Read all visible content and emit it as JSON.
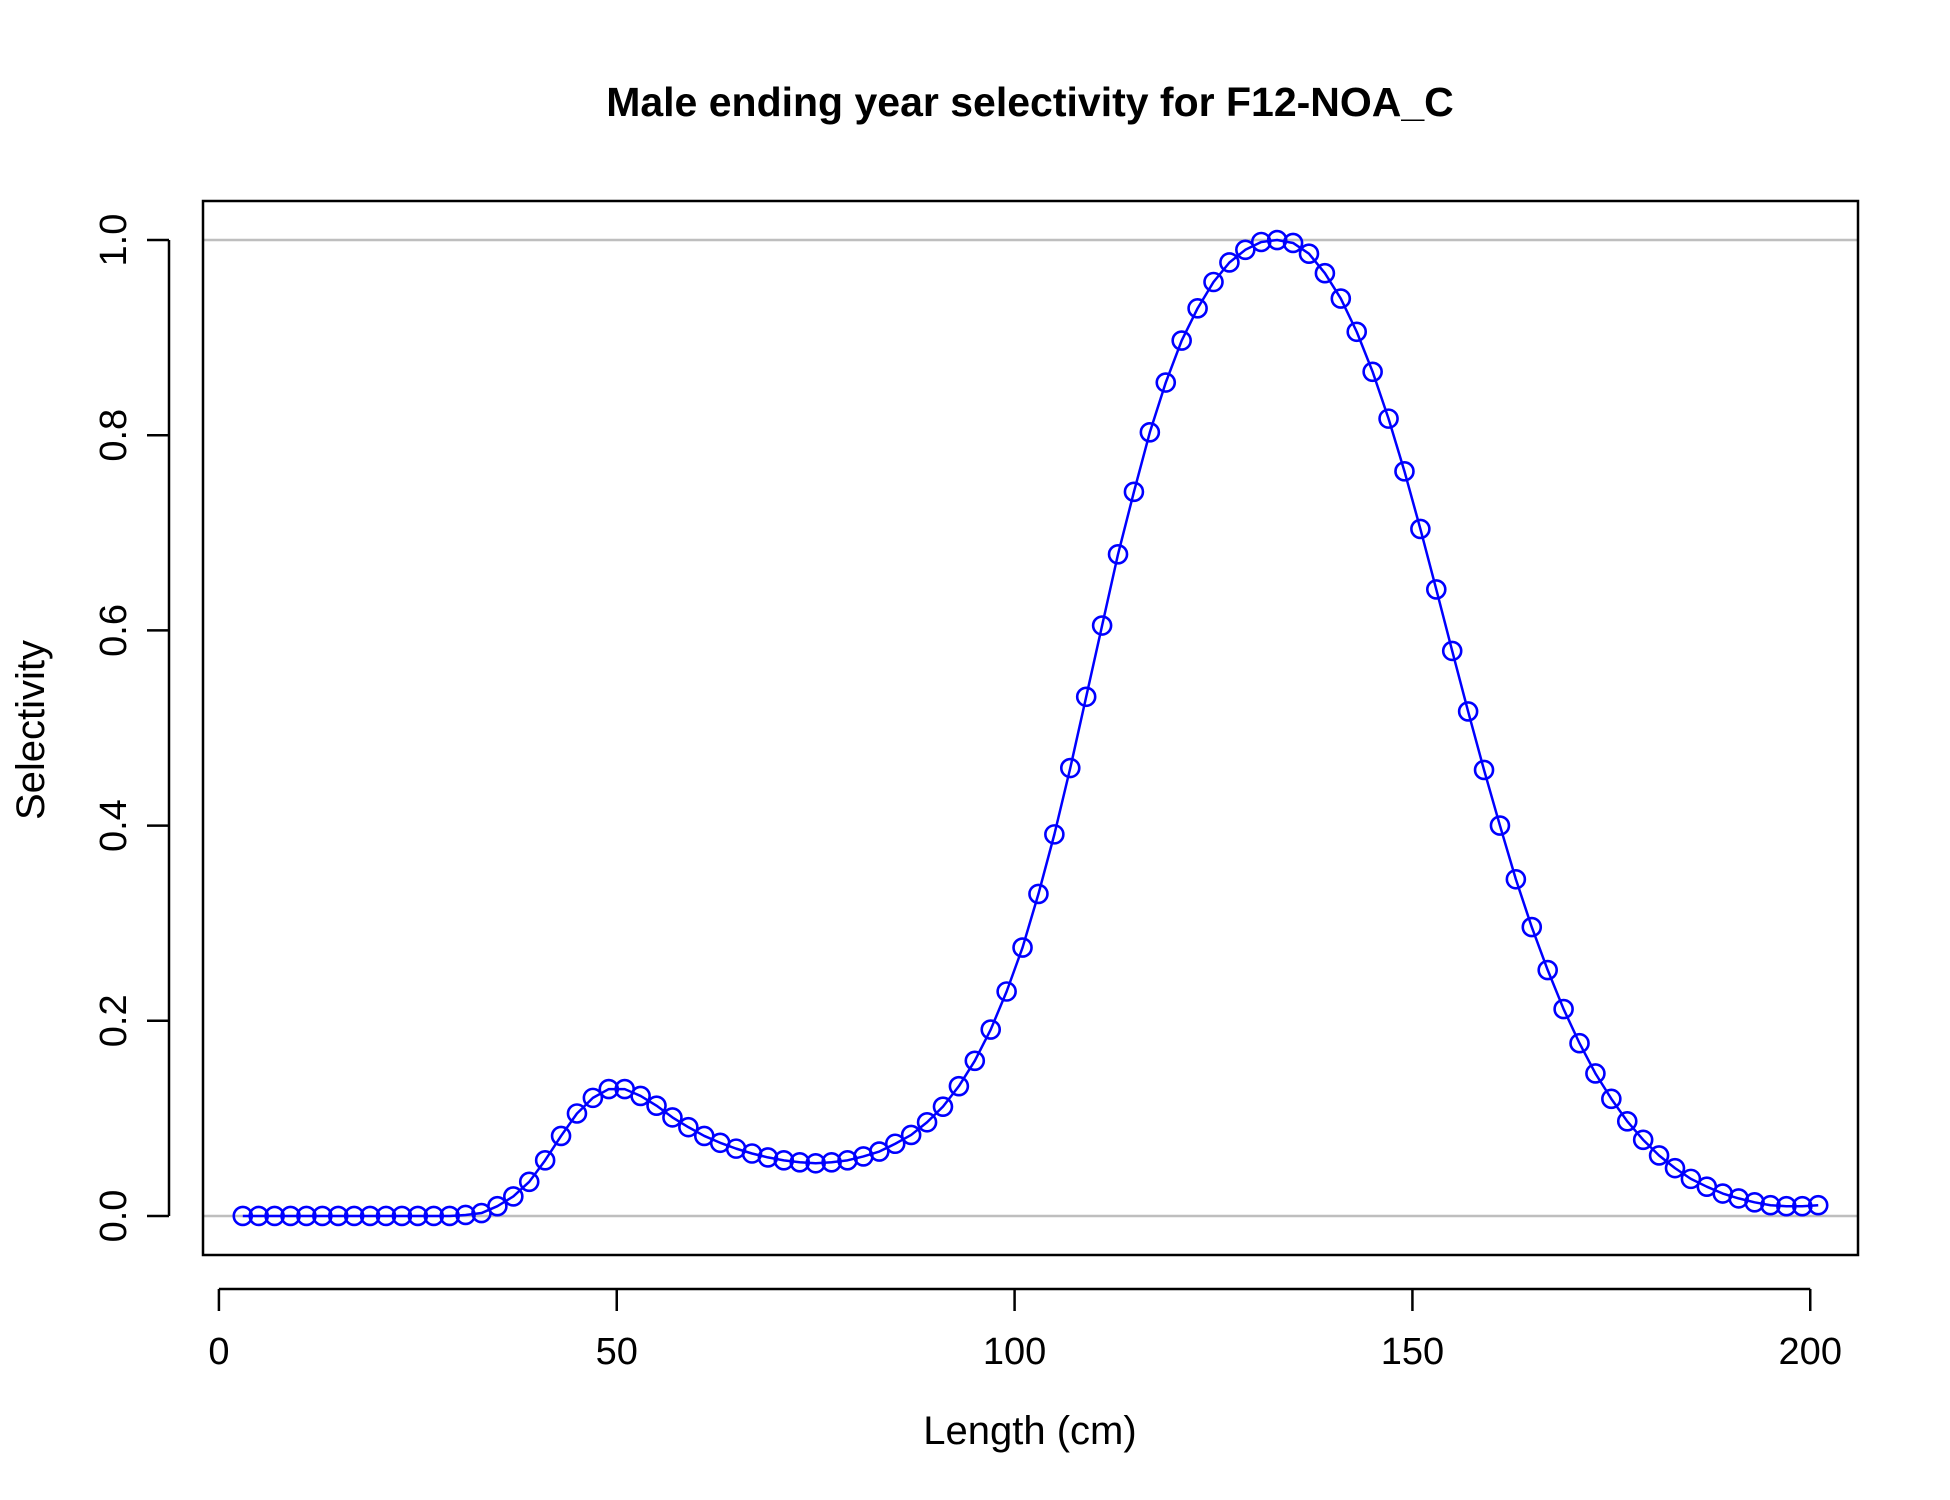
{
  "chart_data": {
    "type": "line",
    "title": "Male ending year selectivity for F12-NOA_C",
    "xlabel": "Length (cm)",
    "ylabel": "Selectivity",
    "xlim": [
      -2,
      206
    ],
    "ylim": [
      -0.04,
      1.04
    ],
    "x_ticks": [
      0,
      50,
      100,
      150,
      200
    ],
    "x_tick_labels": [
      "0",
      "50",
      "100",
      "150",
      "200"
    ],
    "y_ticks": [
      0,
      0.2,
      0.4,
      0.6,
      0.8,
      1.0
    ],
    "y_tick_labels": [
      "0.0",
      "0.2",
      "0.4",
      "0.6",
      "0.8",
      "1.0"
    ],
    "reference_lines": [
      0,
      1
    ],
    "reference_line_color": "#bebebe",
    "series_color": "#0000ff",
    "marker": "open-circle",
    "grid": false,
    "x": [
      3,
      5,
      7,
      9,
      11,
      13,
      15,
      17,
      19,
      21,
      23,
      25,
      27,
      29,
      31,
      33,
      35,
      37,
      39,
      41,
      43,
      45,
      47,
      49,
      51,
      53,
      55,
      57,
      59,
      61,
      63,
      65,
      67,
      69,
      71,
      73,
      75,
      77,
      79,
      81,
      83,
      85,
      87,
      89,
      91,
      93,
      95,
      97,
      99,
      101,
      103,
      105,
      107,
      109,
      111,
      113,
      115,
      117,
      119,
      121,
      123,
      125,
      127,
      129,
      131,
      133,
      135,
      137,
      139,
      141,
      143,
      145,
      147,
      149,
      151,
      153,
      155,
      157,
      159,
      161,
      163,
      165,
      167,
      169,
      171,
      173,
      175,
      177,
      179,
      181,
      183,
      185,
      187,
      189,
      191,
      193,
      195,
      197,
      199,
      201
    ],
    "y": [
      0.0,
      0.0,
      0.0,
      0.0,
      0.0,
      0.0,
      0.0,
      0.0,
      0.0,
      0.0,
      0.0,
      0.0,
      0.0,
      0.0,
      0.001,
      0.003,
      0.01,
      0.02,
      0.035,
      0.057,
      0.082,
      0.105,
      0.121,
      0.13,
      0.13,
      0.123,
      0.113,
      0.101,
      0.091,
      0.082,
      0.075,
      0.069,
      0.064,
      0.06,
      0.057,
      0.055,
      0.054,
      0.055,
      0.057,
      0.061,
      0.066,
      0.074,
      0.083,
      0.096,
      0.112,
      0.133,
      0.159,
      0.191,
      0.23,
      0.275,
      0.33,
      0.391,
      0.459,
      0.532,
      0.605,
      0.678,
      0.742,
      0.803,
      0.854,
      0.897,
      0.93,
      0.957,
      0.977,
      0.99,
      0.998,
      1.0,
      0.997,
      0.986,
      0.966,
      0.94,
      0.906,
      0.865,
      0.817,
      0.763,
      0.704,
      0.642,
      0.579,
      0.517,
      0.457,
      0.4,
      0.345,
      0.296,
      0.252,
      0.212,
      0.177,
      0.146,
      0.12,
      0.097,
      0.078,
      0.062,
      0.049,
      0.038,
      0.03,
      0.023,
      0.018,
      0.014,
      0.011,
      0.01,
      0.01,
      0.011
    ]
  }
}
